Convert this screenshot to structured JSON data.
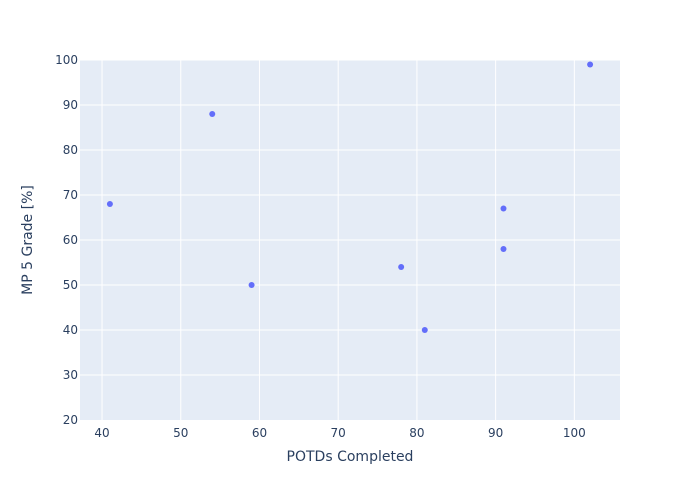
{
  "chart_data": {
    "type": "scatter",
    "title": "",
    "xlabel": "POTDs Completed",
    "ylabel": "MP 5 Grade [%]",
    "xlim": [
      37.2,
      105.8
    ],
    "ylim": [
      20,
      100
    ],
    "x_ticks": [
      40,
      50,
      60,
      70,
      80,
      90,
      100
    ],
    "y_ticks": [
      20,
      30,
      40,
      50,
      60,
      70,
      80,
      90,
      100
    ],
    "grid": true,
    "legend": "none",
    "colors": {
      "marker": "#636efa",
      "plot_bg": "#e5ecf6",
      "grid": "#ffffff",
      "text": "#2a3f5f"
    },
    "series": [
      {
        "points": [
          {
            "x": 41,
            "y": 68
          },
          {
            "x": 54,
            "y": 88
          },
          {
            "x": 59,
            "y": 50
          },
          {
            "x": 78,
            "y": 54
          },
          {
            "x": 81,
            "y": 40
          },
          {
            "x": 91,
            "y": 67
          },
          {
            "x": 91,
            "y": 58
          },
          {
            "x": 102,
            "y": 99
          }
        ]
      }
    ]
  }
}
